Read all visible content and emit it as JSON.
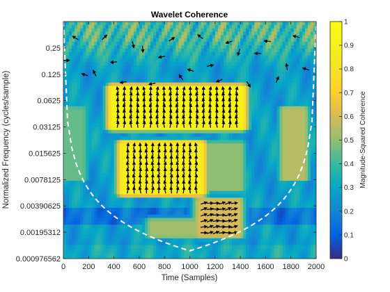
{
  "chart_data": {
    "type": "heatmap",
    "title": "Wavelet Coherence",
    "xlabel": "Time (Samples)",
    "ylabel": "Normalized Frequency  (cycles/sample)",
    "x_ticks": [
      0,
      200,
      400,
      600,
      800,
      1000,
      1200,
      1400,
      1600,
      1800,
      2000
    ],
    "x_tick_labels": [
      "0",
      "200",
      "400",
      "600",
      "800",
      "1000",
      "1200",
      "1400",
      "1600",
      "1800",
      "2000"
    ],
    "xlim": [
      0,
      2000
    ],
    "y_scale": "log2",
    "y_ticks": [
      0.25,
      0.125,
      0.0625,
      0.03125,
      0.015625,
      0.0078125,
      0.00390625,
      0.00195312,
      0.000976562
    ],
    "y_tick_labels": [
      "0.25",
      "0.125",
      "0.0625",
      "0.03125",
      "0.015625",
      "0.0078125",
      "0.00390625",
      "0.00195312",
      "0.000976562"
    ],
    "ylim": [
      0.000976562,
      0.5
    ],
    "colorbar": {
      "label": "Magnitude-Squared Coherence",
      "range": [
        0,
        1
      ],
      "ticks": [
        0,
        0.1,
        0.2,
        0.3,
        0.4,
        0.5,
        0.6,
        0.7,
        0.8,
        0.9,
        1
      ],
      "tick_labels": [
        "0",
        "0.1",
        "0.2",
        "0.3",
        "0.4",
        "0.5",
        "0.6",
        "0.7",
        "0.8",
        "0.9",
        "1"
      ],
      "colormap": "parula"
    },
    "high_coherence_regions": [
      {
        "time_range": [
          400,
          1400
        ],
        "frequency_range": [
          0.031,
          0.088
        ],
        "coherence": 0.92,
        "phase_arrows": "up"
      },
      {
        "time_range": [
          480,
          1080
        ],
        "frequency_range": [
          0.0055,
          0.02
        ],
        "coherence": 0.88,
        "phase_arrows": "up"
      },
      {
        "time_range": [
          1080,
          1380
        ],
        "frequency_range": [
          0.0018,
          0.0045
        ],
        "coherence": 0.6,
        "phase_arrows": "right"
      }
    ],
    "cone_of_influence": {
      "style": "dashed",
      "color": "#ffffff"
    },
    "grid": false,
    "legend": "none"
  }
}
